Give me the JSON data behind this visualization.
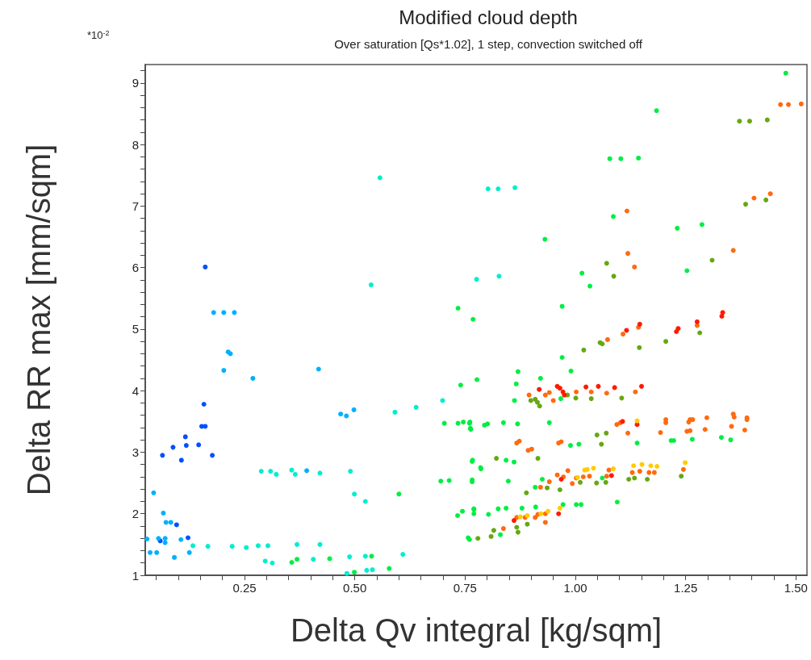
{
  "chart_data": {
    "type": "scatter",
    "title": "Modified cloud depth",
    "subtitle": "Over saturation [Qs*1.02], 1 step, convection switched off",
    "xlabel": "Delta Qv integral [kg/sqm]",
    "ylabel": "Delta RR max [mm/sqm]",
    "annotations": [
      "*10$^{-2}$"
    ],
    "marker": "circle",
    "grid": false,
    "xlim": [
      0.025,
      1.525
    ],
    "ylim": [
      1,
      9.3
    ],
    "xticks": [
      {
        "value": 0.05,
        "label": null
      },
      {
        "value": 0.1,
        "label": null
      },
      {
        "value": 0.15,
        "label": null
      },
      {
        "value": 0.2,
        "label": null
      },
      0.25,
      {
        "value": 0.3,
        "label": null
      },
      {
        "value": 0.35,
        "label": null
      },
      {
        "value": 0.4,
        "label": null
      },
      {
        "value": 0.45,
        "label": null
      },
      {
        "value": 0.5,
        "label": "0.50"
      },
      {
        "value": 0.55,
        "label": null
      },
      {
        "value": 0.6,
        "label": null
      },
      {
        "value": 0.65,
        "label": null
      },
      {
        "value": 0.7,
        "label": null
      },
      0.75,
      {
        "value": 0.8,
        "label": null
      },
      {
        "value": 0.85,
        "label": null
      },
      {
        "value": 0.9,
        "label": null
      },
      {
        "value": 0.95,
        "label": null
      },
      {
        "value": 1,
        "label": "1.00"
      },
      {
        "value": 1.05,
        "label": null
      },
      {
        "value": 1.1,
        "label": null
      },
      {
        "value": 1.15,
        "label": null
      },
      {
        "value": 1.2,
        "label": null
      },
      1.25,
      {
        "value": 1.3,
        "label": null
      },
      {
        "value": 1.35,
        "label": null
      },
      {
        "value": 1.4,
        "label": null
      },
      {
        "value": 1.45,
        "label": null
      },
      {
        "value": 1.5,
        "label": "1.50"
      }
    ],
    "yticks": [
      1,
      {
        "value": 1.2,
        "label": null
      },
      {
        "value": 1.4,
        "label": null
      },
      {
        "value": 1.6,
        "label": null
      },
      {
        "value": 1.8,
        "label": null
      },
      2,
      {
        "value": 2.2,
        "label": null
      },
      {
        "value": 2.4,
        "label": null
      },
      {
        "value": 2.6,
        "label": null
      },
      {
        "value": 2.8,
        "label": null
      },
      3,
      {
        "value": 3.2,
        "label": null
      },
      {
        "value": 3.4,
        "label": null
      },
      {
        "value": 3.6,
        "label": null
      },
      {
        "value": 3.8,
        "label": null
      },
      4,
      {
        "value": 4.2,
        "label": null
      },
      {
        "value": 4.4,
        "label": null
      },
      {
        "value": 4.6,
        "label": null
      },
      {
        "value": 4.8,
        "label": null
      },
      5,
      {
        "value": 5.2,
        "label": null
      },
      {
        "value": 5.4,
        "label": null
      },
      {
        "value": 5.6,
        "label": null
      },
      {
        "value": 5.8,
        "label": null
      },
      6,
      {
        "value": 6.2,
        "label": null
      },
      {
        "value": 6.4,
        "label": null
      },
      {
        "value": 6.6,
        "label": null
      },
      {
        "value": 6.8,
        "label": null
      },
      7,
      {
        "value": 7.2,
        "label": null
      },
      {
        "value": 7.4,
        "label": null
      },
      {
        "value": 7.6,
        "label": null
      },
      {
        "value": 7.8,
        "label": null
      },
      8,
      {
        "value": 8.2,
        "label": null
      },
      {
        "value": 8.4,
        "label": null
      },
      {
        "value": 8.6,
        "label": null
      },
      {
        "value": 8.8,
        "label": null
      },
      9,
      {
        "value": 9.2,
        "label": null
      }
    ],
    "series": [
      {
        "color": "#0050ff",
        "x": [
          0.161,
          0.158,
          0.153,
          0.161,
          0.116,
          0.088,
          0.118,
          0.146,
          0.064,
          0.107,
          0.177,
          0.096,
          0.059,
          0.122
        ],
        "values": [
          6.01,
          3.78,
          3.42,
          3.42,
          3.25,
          3.08,
          3.11,
          3.12,
          2.95,
          2.87,
          2.95,
          1.82,
          1.56,
          1.61
        ]
      },
      {
        "color": "#00b0ff",
        "x": [
          0.18,
          0.203,
          0.227,
          0.213,
          0.218,
          0.203,
          0.269,
          0.418,
          0.044,
          0.066,
          0.072,
          0.083,
          0.029,
          0.055,
          0.07,
          0.07,
          0.106,
          0.036,
          0.051,
          0.091,
          0.125,
          0.391,
          0.468,
          0.481,
          0.498
        ],
        "values": [
          5.27,
          5.27,
          5.27,
          4.63,
          4.6,
          4.33,
          4.2,
          4.35,
          2.34,
          2.01,
          1.86,
          1.86,
          1.59,
          1.6,
          1.6,
          1.53,
          1.58,
          1.37,
          1.37,
          1.29,
          1.37,
          2.7,
          3.62,
          3.59,
          3.69
        ]
      },
      {
        "color": "#00eed0",
        "x": [
          0.557,
          0.537,
          0.288,
          0.309,
          0.322,
          0.357,
          0.365,
          0.421,
          0.49,
          0.499,
          0.524,
          0.133,
          0.167,
          0.222,
          0.254,
          0.281,
          0.303,
          0.369,
          0.421,
          0.297,
          0.313,
          0.406,
          0.488,
          0.524,
          0.482,
          0.527,
          0.54,
          0.609,
          0.699,
          0.639,
          0.591,
          0.802,
          0.825,
          0.863,
          0.776,
          0.827
        ],
        "values": [
          7.46,
          5.72,
          2.69,
          2.69,
          2.64,
          2.71,
          2.64,
          2.66,
          2.69,
          2.32,
          2.2,
          1.48,
          1.47,
          1.47,
          1.45,
          1.48,
          1.48,
          1.5,
          1.5,
          1.23,
          1.2,
          1.26,
          1.3,
          1.31,
          1.03,
          1.08,
          1.09,
          1.34,
          3.84,
          3.73,
          3.65,
          7.28,
          7.28,
          7.3,
          5.81,
          5.86
        ]
      },
      {
        "color": "#00ee44",
        "x": [
          0.357,
          0.369,
          0.443,
          0.578,
          0.6,
          0.734,
          0.768,
          0.777,
          0.74,
          0.703,
          0.734,
          0.746,
          0.761,
          0.762,
          0.767,
          0.785,
          0.695,
          0.714,
          0.766,
          0.733,
          0.744,
          0.77,
          0.757,
          0.499,
          0.538,
          1.477,
          1.184,
          1.078,
          1.103,
          1.143,
          1.086,
          1.231,
          1.287,
          0.931,
          1.253,
          1.015,
          1.033,
          0.97,
          0.97,
          0.87,
          0.99,
          0.921,
          0.866,
          0.862,
          0.967,
          0.76,
          0.763,
          0.794,
          0.801,
          0.837,
          0.869,
          0.941,
          1.331,
          1.352,
          1.265,
          1.217,
          1.223,
          1.14,
          0.989,
          1.008,
          0.766,
          0.843,
          0.861,
          0.786,
          0.766,
          0.848,
          0.925,
          0.909,
          1.061,
          1.095,
          1.002,
          1.013,
          0.972,
          0.91,
          0.879,
          0.843,
          0.825,
          0.803,
          0.77,
          0.77,
          0.76,
          0.83
        ],
        "values": [
          1.21,
          1.26,
          1.27,
          1.11,
          2.32,
          5.34,
          5.16,
          4.18,
          4.09,
          3.47,
          3.47,
          3.49,
          3.49,
          3.39,
          2.87,
          2.75,
          2.53,
          2.54,
          2.55,
          1.97,
          2.04,
          2.08,
          1.61,
          1.05,
          1.31,
          9.16,
          8.55,
          7.77,
          7.77,
          7.78,
          6.83,
          6.64,
          6.7,
          6.46,
          5.95,
          5.91,
          5.7,
          5.37,
          4.54,
          4.31,
          4.32,
          4.2,
          4.11,
          3.84,
          3.87,
          3.47,
          3.37,
          3.44,
          3.46,
          3.48,
          3.46,
          3.48,
          3.24,
          3.2,
          3.21,
          3.19,
          3.19,
          3.15,
          3.11,
          3.13,
          2.85,
          2.87,
          2.84,
          2.73,
          2.52,
          2.53,
          2.56,
          2.43,
          2.58,
          2.19,
          2.15,
          2.15,
          2.15,
          2.11,
          2.09,
          2.09,
          2.08,
          1.99,
          2.07,
          2,
          1.58,
          1.66
        ]
      },
      {
        "color": "#66a812",
        "x": [
          1.372,
          1.395,
          1.435,
          1.386,
          1.432,
          1.071,
          1.087,
          1.31,
          1.282,
          1.205,
          1.145,
          1.056,
          1.061,
          1.019,
          0.899,
          0.909,
          0.914,
          0.919,
          0.982,
          1.001,
          1.036,
          1.105,
          1.049,
          1.07,
          1.059,
          0.821,
          0.915,
          0.889,
          0.936,
          0.965,
          1.011,
          1.048,
          1.069,
          1.121,
          1.134,
          1.163,
          1.24,
          0.867,
          0.87,
          0.891,
          0.815,
          0.779,
          0.809
        ],
        "values": [
          8.38,
          8.38,
          8.4,
          7.03,
          7.1,
          6.07,
          5.86,
          6.12,
          4.94,
          4.8,
          4.7,
          4.78,
          4.76,
          4.66,
          3.84,
          3.86,
          3.81,
          3.75,
          3.93,
          3.88,
          3.87,
          3.88,
          3.28,
          3.31,
          3.13,
          2.9,
          2.9,
          2.34,
          2.42,
          2.39,
          2.51,
          2.5,
          2.51,
          2.56,
          2.58,
          2.56,
          2.61,
          1.78,
          1.7,
          1.83,
          1.73,
          1.6,
          1.63
        ]
      },
      {
        "color": "#ff6a10",
        "x": [
          1.465,
          1.483,
          1.512,
          1.405,
          1.442,
          1.117,
          1.119,
          1.134,
          1.358,
          1.276,
          1.143,
          1.108,
          1.073,
          0.895,
          0.932,
          0.941,
          0.95,
          1.002,
          1.036,
          1.071,
          1.136,
          1.094,
          1.102,
          1.205,
          1.205,
          1.26,
          1.266,
          1.257,
          1.298,
          1.358,
          1.36,
          1.389,
          1.389,
          1.119,
          1.193,
          1.253,
          1.26,
          1.294,
          1.354,
          1.384,
          0.867,
          0.873,
          0.893,
          0.901,
          0.962,
          0.968,
          0.921,
          0.941,
          0.959,
          0.973,
          0.983,
          0.993,
          1.002,
          1.018,
          1.032,
          1.076,
          1.071,
          1.129,
          1.146,
          1.167,
          1.179,
          1.245,
          0.867,
          0.886,
          0.909,
          0.915,
          0.932,
          0.932,
          0.837
        ],
        "values": [
          8.65,
          8.65,
          8.66,
          7.13,
          7.2,
          6.92,
          6.23,
          6.01,
          6.28,
          5.06,
          5.03,
          4.92,
          4.83,
          3.93,
          3.93,
          3.97,
          3.84,
          3.98,
          3.98,
          3.96,
          3.98,
          3.45,
          3.48,
          3.53,
          3.48,
          3.53,
          3.53,
          3.49,
          3.56,
          3.62,
          3.57,
          3.56,
          3.53,
          3.31,
          3.32,
          3.34,
          3.35,
          3.37,
          3.42,
          3.36,
          3.15,
          3.18,
          3.03,
          3.05,
          3.15,
          3.17,
          2.43,
          2.52,
          2.63,
          2.6,
          2.7,
          2.49,
          2.58,
          2.6,
          2.61,
          2.71,
          2.61,
          2.67,
          2.69,
          2.67,
          2.67,
          2.72,
          1.94,
          1.94,
          1.94,
          1.99,
          2,
          1.86,
          1.76
        ]
      },
      {
        "color": "#ff1a00",
        "x": [
          1.334,
          1.332,
          1.276,
          1.233,
          1.229,
          1.146,
          1.116,
          0.918,
          0.959,
          0.965,
          0.972,
          0.975,
          1.024,
          1.052,
          1.089,
          1.15,
          1.107,
          1.14,
          0.968,
          1.082,
          0.962,
          0.861
        ],
        "values": [
          5.27,
          5.21,
          5.12,
          5.01,
          4.96,
          5.08,
          4.98,
          4.02,
          4.07,
          4.04,
          3.98,
          3.93,
          4.06,
          4.07,
          4.05,
          4.07,
          3.5,
          3.45,
          2.56,
          2.62,
          2,
          1.89
        ]
      },
      {
        "color": "#ffcc00",
        "x": [
          1.14,
          1.021,
          1.027,
          1.041,
          1.086,
          1.132,
          1.151,
          1.171,
          1.185,
          1.249,
          1.005,
          0.965,
          0.875,
          0.891,
          0.922,
          0.938
        ],
        "values": [
          3.51,
          2.71,
          2.72,
          2.74,
          2.73,
          2.78,
          2.8,
          2.78,
          2.77,
          2.83,
          2.59,
          2.09,
          1.95,
          1.97,
          2,
          2.04
        ]
      }
    ]
  }
}
